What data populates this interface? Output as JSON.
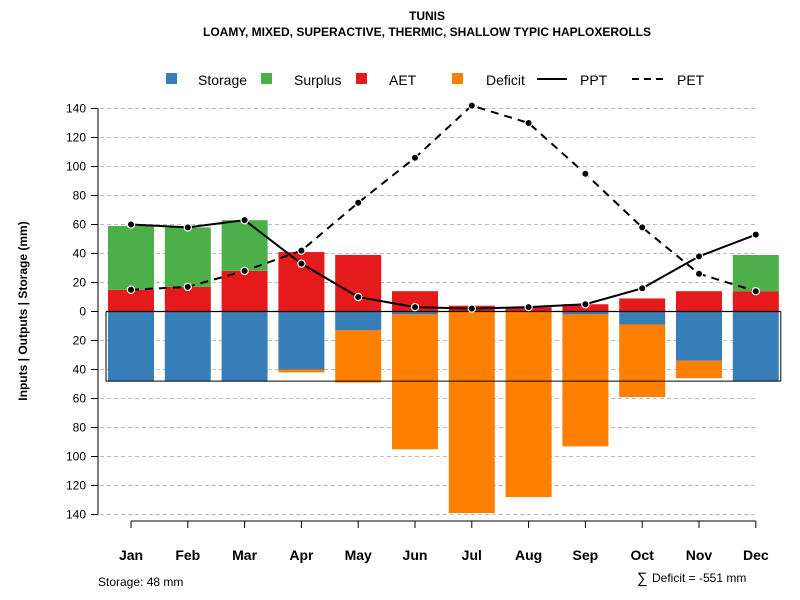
{
  "chart_data": {
    "type": "bar",
    "title": "TUNIS",
    "subtitle": "LOAMY, MIXED, SUPERACTIVE, THERMIC, SHALLOW TYPIC HAPLOXEROLLS",
    "ylabel": "Inputs | Outputs | Storage    (mm)",
    "ylim": [
      -140,
      140
    ],
    "yticks": [
      140,
      120,
      100,
      80,
      60,
      40,
      20,
      0,
      20,
      40,
      60,
      80,
      100,
      120,
      140
    ],
    "categories": [
      "Jan",
      "Feb",
      "Mar",
      "Apr",
      "May",
      "Jun",
      "Jul",
      "Aug",
      "Sep",
      "Oct",
      "Nov",
      "Dec"
    ],
    "legend": {
      "storage": "Storage",
      "surplus": "Surplus",
      "aet": "AET",
      "deficit": "Deficit",
      "ppt": "PPT",
      "pet": "PET"
    },
    "colors": {
      "storage": "#377eb8",
      "surplus": "#4daf4a",
      "aet": "#e41a1c",
      "deficit": "#ff7f00",
      "line": "#000000",
      "grid": "#bbbbbb"
    },
    "series": [
      {
        "name": "AET",
        "values": [
          15,
          17,
          28,
          41,
          39,
          14,
          4,
          3,
          5,
          9,
          14,
          14
        ]
      },
      {
        "name": "Surplus",
        "values": [
          44,
          41,
          35,
          0,
          0,
          0,
          0,
          0,
          0,
          0,
          0,
          25
        ]
      },
      {
        "name": "Storage",
        "values": [
          48,
          48,
          48,
          40,
          13,
          2,
          0,
          0,
          2,
          9,
          34,
          48
        ]
      },
      {
        "name": "Deficit",
        "values": [
          0,
          0,
          0,
          2,
          36,
          93,
          139,
          128,
          91,
          50,
          12,
          0
        ]
      },
      {
        "name": "PPT",
        "values": [
          60,
          58,
          63,
          33,
          10,
          3,
          2,
          3,
          5,
          16,
          38,
          53
        ]
      },
      {
        "name": "PET",
        "values": [
          15,
          17,
          28,
          42,
          75,
          106,
          142,
          130,
          95,
          58,
          26,
          14
        ]
      }
    ],
    "storage_capacity": 48,
    "footer_left": "Storage: 48 mm",
    "footer_right_symbol": "∑",
    "footer_right": "Deficit = -551 mm"
  }
}
